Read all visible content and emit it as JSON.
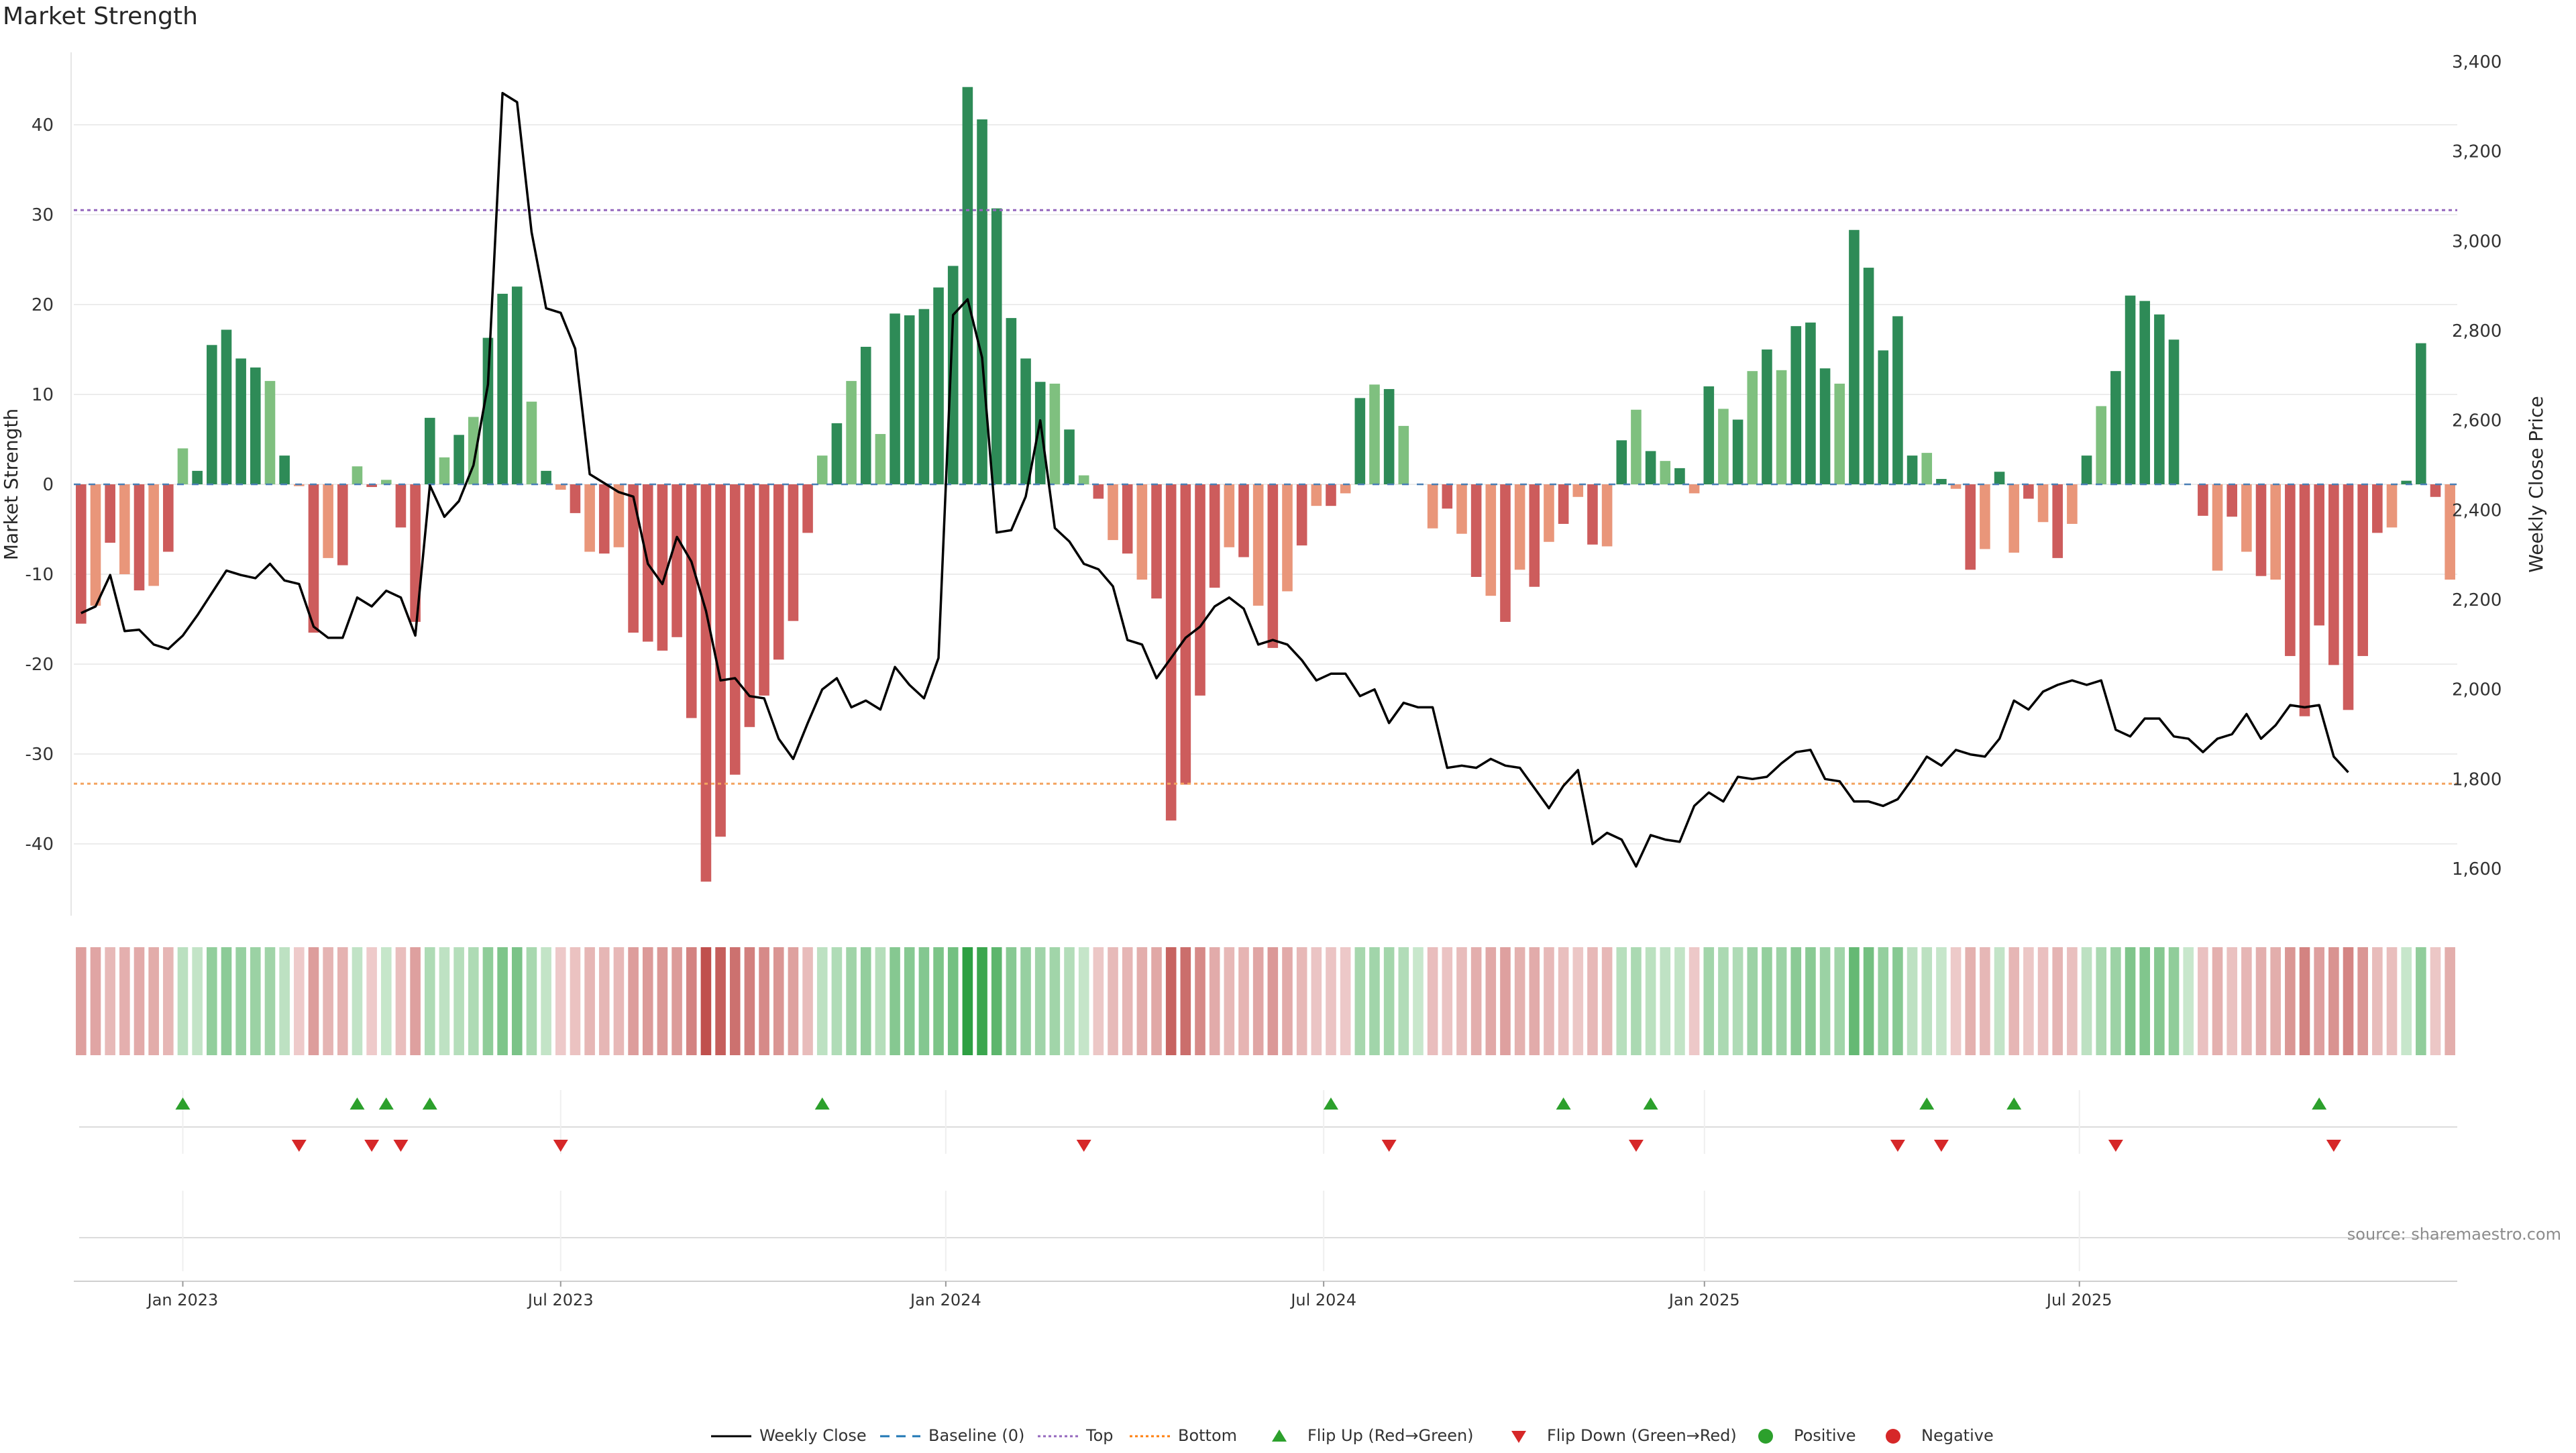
{
  "title": "Market Strength",
  "source": "source: sharemaestro.com",
  "legend": [
    {
      "label": "Weekly Close",
      "symbol": "line",
      "color": "#000000"
    },
    {
      "label": "Baseline (0)",
      "symbol": "dash",
      "color": "#1f77b4"
    },
    {
      "label": "Top",
      "symbol": "dot",
      "color": "#9467bd"
    },
    {
      "label": "Bottom",
      "symbol": "dot",
      "color": "#ff7f0e"
    },
    {
      "label": "Flip Up (Red→Green)",
      "symbol": "tri-up",
      "color": "#2ca02c"
    },
    {
      "label": "Flip Down (Green→Red)",
      "symbol": "tri-down",
      "color": "#d62728"
    },
    {
      "label": "Positive",
      "symbol": "circle",
      "color": "#2ca02c"
    },
    {
      "label": "Negative",
      "symbol": "circle",
      "color": "#d62728"
    }
  ],
  "colors": {
    "pos_strong": "#2e8b57",
    "pos_weak": "#7fc07f",
    "neg_strong": "#cd5c5c",
    "neg_weak": "#e9967a",
    "close_line": "#000000",
    "top_line": "#9467bd",
    "bottom_line": "#f4a460",
    "flip_up": "#2ca02c",
    "flip_down": "#d62728"
  },
  "chart_data": {
    "type": "bar",
    "title": "Market Strength",
    "xlabel": "",
    "ylabel": "Market Strength",
    "y2label": "Weekly Close Price",
    "x_ticks": [
      "Jan 2023",
      "Jul 2023",
      "Jan 2024",
      "Jul 2024",
      "Jan 2025",
      "Jul 2025"
    ],
    "x_tick_weeks": [
      7,
      33,
      59.5,
      85.5,
      111.7,
      137.5
    ],
    "y_ticks": [
      40,
      30,
      20,
      10,
      0,
      -10,
      -20,
      -30,
      -40
    ],
    "y2_ticks": [
      "3,400",
      "3,200",
      "3,000",
      "2,800",
      "2,600",
      "2,400",
      "2,200",
      "2,000",
      "1,800",
      "1,600"
    ],
    "y2_tick_values": [
      3400,
      3200,
      3000,
      2800,
      2600,
      2400,
      2200,
      2000,
      1800,
      1600
    ],
    "ylim": [
      -48.5,
      48.5
    ],
    "y2lim": [
      1530,
      3420
    ],
    "top_level": 30.5,
    "bottom_level": -33.3,
    "grid": true,
    "legend_position": "bottom",
    "series": [
      {
        "name": "Market Strength",
        "values": [
          -15.5,
          -13.5,
          -6.5,
          -10,
          -11.8,
          -11.3,
          -7.5,
          4,
          1.5,
          15.5,
          17.2,
          14,
          13,
          11.5,
          3.2,
          -0.2,
          -16.5,
          -8.2,
          -9,
          2,
          -0.3,
          0.5,
          -4.8,
          -15.3,
          7.4,
          3,
          5.5,
          7.5,
          16.3,
          21.2,
          22,
          9.2,
          1.5,
          -0.6,
          -3.2,
          -7.5,
          -7.7,
          -7,
          -16.5,
          -17.5,
          -18.5,
          -17,
          -26,
          -44.2,
          -39.2,
          -32.3,
          -27,
          -23.5,
          -19.5,
          -15.2,
          -5.4,
          3.2,
          6.8,
          11.5,
          15.3,
          5.6,
          19,
          18.8,
          19.5,
          21.9,
          24.3,
          44.2,
          40.6,
          30.7,
          18.5,
          14,
          11.4,
          11.2,
          6.1,
          1,
          -1.6,
          -6.2,
          -7.7,
          -10.6,
          -12.7,
          -37.4,
          -33.4,
          -23.5,
          -11.5,
          -7,
          -8.1,
          -13.5,
          -18.2,
          -11.9,
          -6.8,
          -2.4,
          -2.4,
          -1,
          9.6,
          11.1,
          10.6,
          6.5,
          0,
          -4.9,
          -2.7,
          -5.5,
          -10.3,
          -12.4,
          -15.3,
          -9.5,
          -11.4,
          -6.4,
          -4.4,
          -1.4,
          -6.7,
          -6.9,
          4.9,
          8.3,
          3.7,
          2.6,
          1.8,
          -1,
          10.9,
          8.4,
          7.2,
          12.6,
          15,
          12.7,
          17.6,
          18,
          12.9,
          11.2,
          28.3,
          24.1,
          14.9,
          18.7,
          3.2,
          3.5,
          0.6,
          -0.5,
          -9.5,
          -7.2,
          1.4,
          -7.6,
          -1.6,
          -4.2,
          -8.2,
          -4.4,
          3.2,
          8.7,
          12.6,
          21,
          20.4,
          18.9,
          16.1,
          0,
          -3.5,
          -9.6,
          -3.6,
          -7.5,
          -10.2,
          -10.6,
          -19.1,
          -25.8,
          -15.7,
          -20.1,
          -25.1,
          -19.1,
          -5.4,
          -4.8,
          0.4,
          15.7,
          -1.4,
          -10.6
        ]
      },
      {
        "name": "Weekly Close",
        "values": [
          2170,
          2185,
          2255,
          2130,
          2133,
          2100,
          2090,
          2120,
          2165,
          2215,
          2265,
          2255,
          2248,
          2280,
          2243,
          2235,
          2140,
          2115,
          2115,
          2205,
          2185,
          2220,
          2205,
          2120,
          2455,
          2385,
          2420,
          2500,
          2680,
          3330,
          3310,
          3020,
          2850,
          2840,
          2760,
          2480,
          2460,
          2440,
          2430,
          2280,
          2235,
          2340,
          2285,
          2175,
          2020,
          2025,
          1985,
          1980,
          1890,
          1845,
          1925,
          2000,
          2025,
          1960,
          1975,
          1955,
          2050,
          2010,
          1980,
          2070,
          2835,
          2870,
          2740,
          2350,
          2355,
          2430,
          2600,
          2360,
          2330,
          2280,
          2268,
          2230,
          2110,
          2100,
          2025,
          2070,
          2115,
          2140,
          2185,
          2205,
          2180,
          2100,
          2110,
          2100,
          2065,
          2020,
          2035,
          2035,
          1985,
          2000,
          1925,
          1970,
          1960,
          1960,
          1825,
          1830,
          1825,
          1845,
          1830,
          1825,
          1780,
          1735,
          1785,
          1820,
          1655,
          1680,
          1665,
          1605,
          1675,
          1665,
          1660,
          1740,
          1770,
          1750,
          1805,
          1800,
          1805,
          1835,
          1860,
          1865,
          1800,
          1795,
          1750,
          1750,
          1740,
          1755,
          1800,
          1850,
          1830,
          1865,
          1855,
          1850,
          1890,
          1975,
          1955,
          1995,
          2010,
          2020,
          2010,
          2020,
          1910,
          1895,
          1935,
          1935,
          1895,
          1890,
          1860,
          1890,
          1900,
          1945,
          1890,
          1920,
          1965,
          1960,
          1965,
          1850,
          1815
        ]
      }
    ],
    "flip_up_weeks": [
      7,
      19,
      21,
      24,
      51,
      86,
      102,
      108,
      127,
      133,
      154
    ],
    "flip_down_weeks": [
      15,
      20,
      22,
      33,
      69,
      90,
      107,
      125,
      128,
      140,
      155
    ]
  }
}
